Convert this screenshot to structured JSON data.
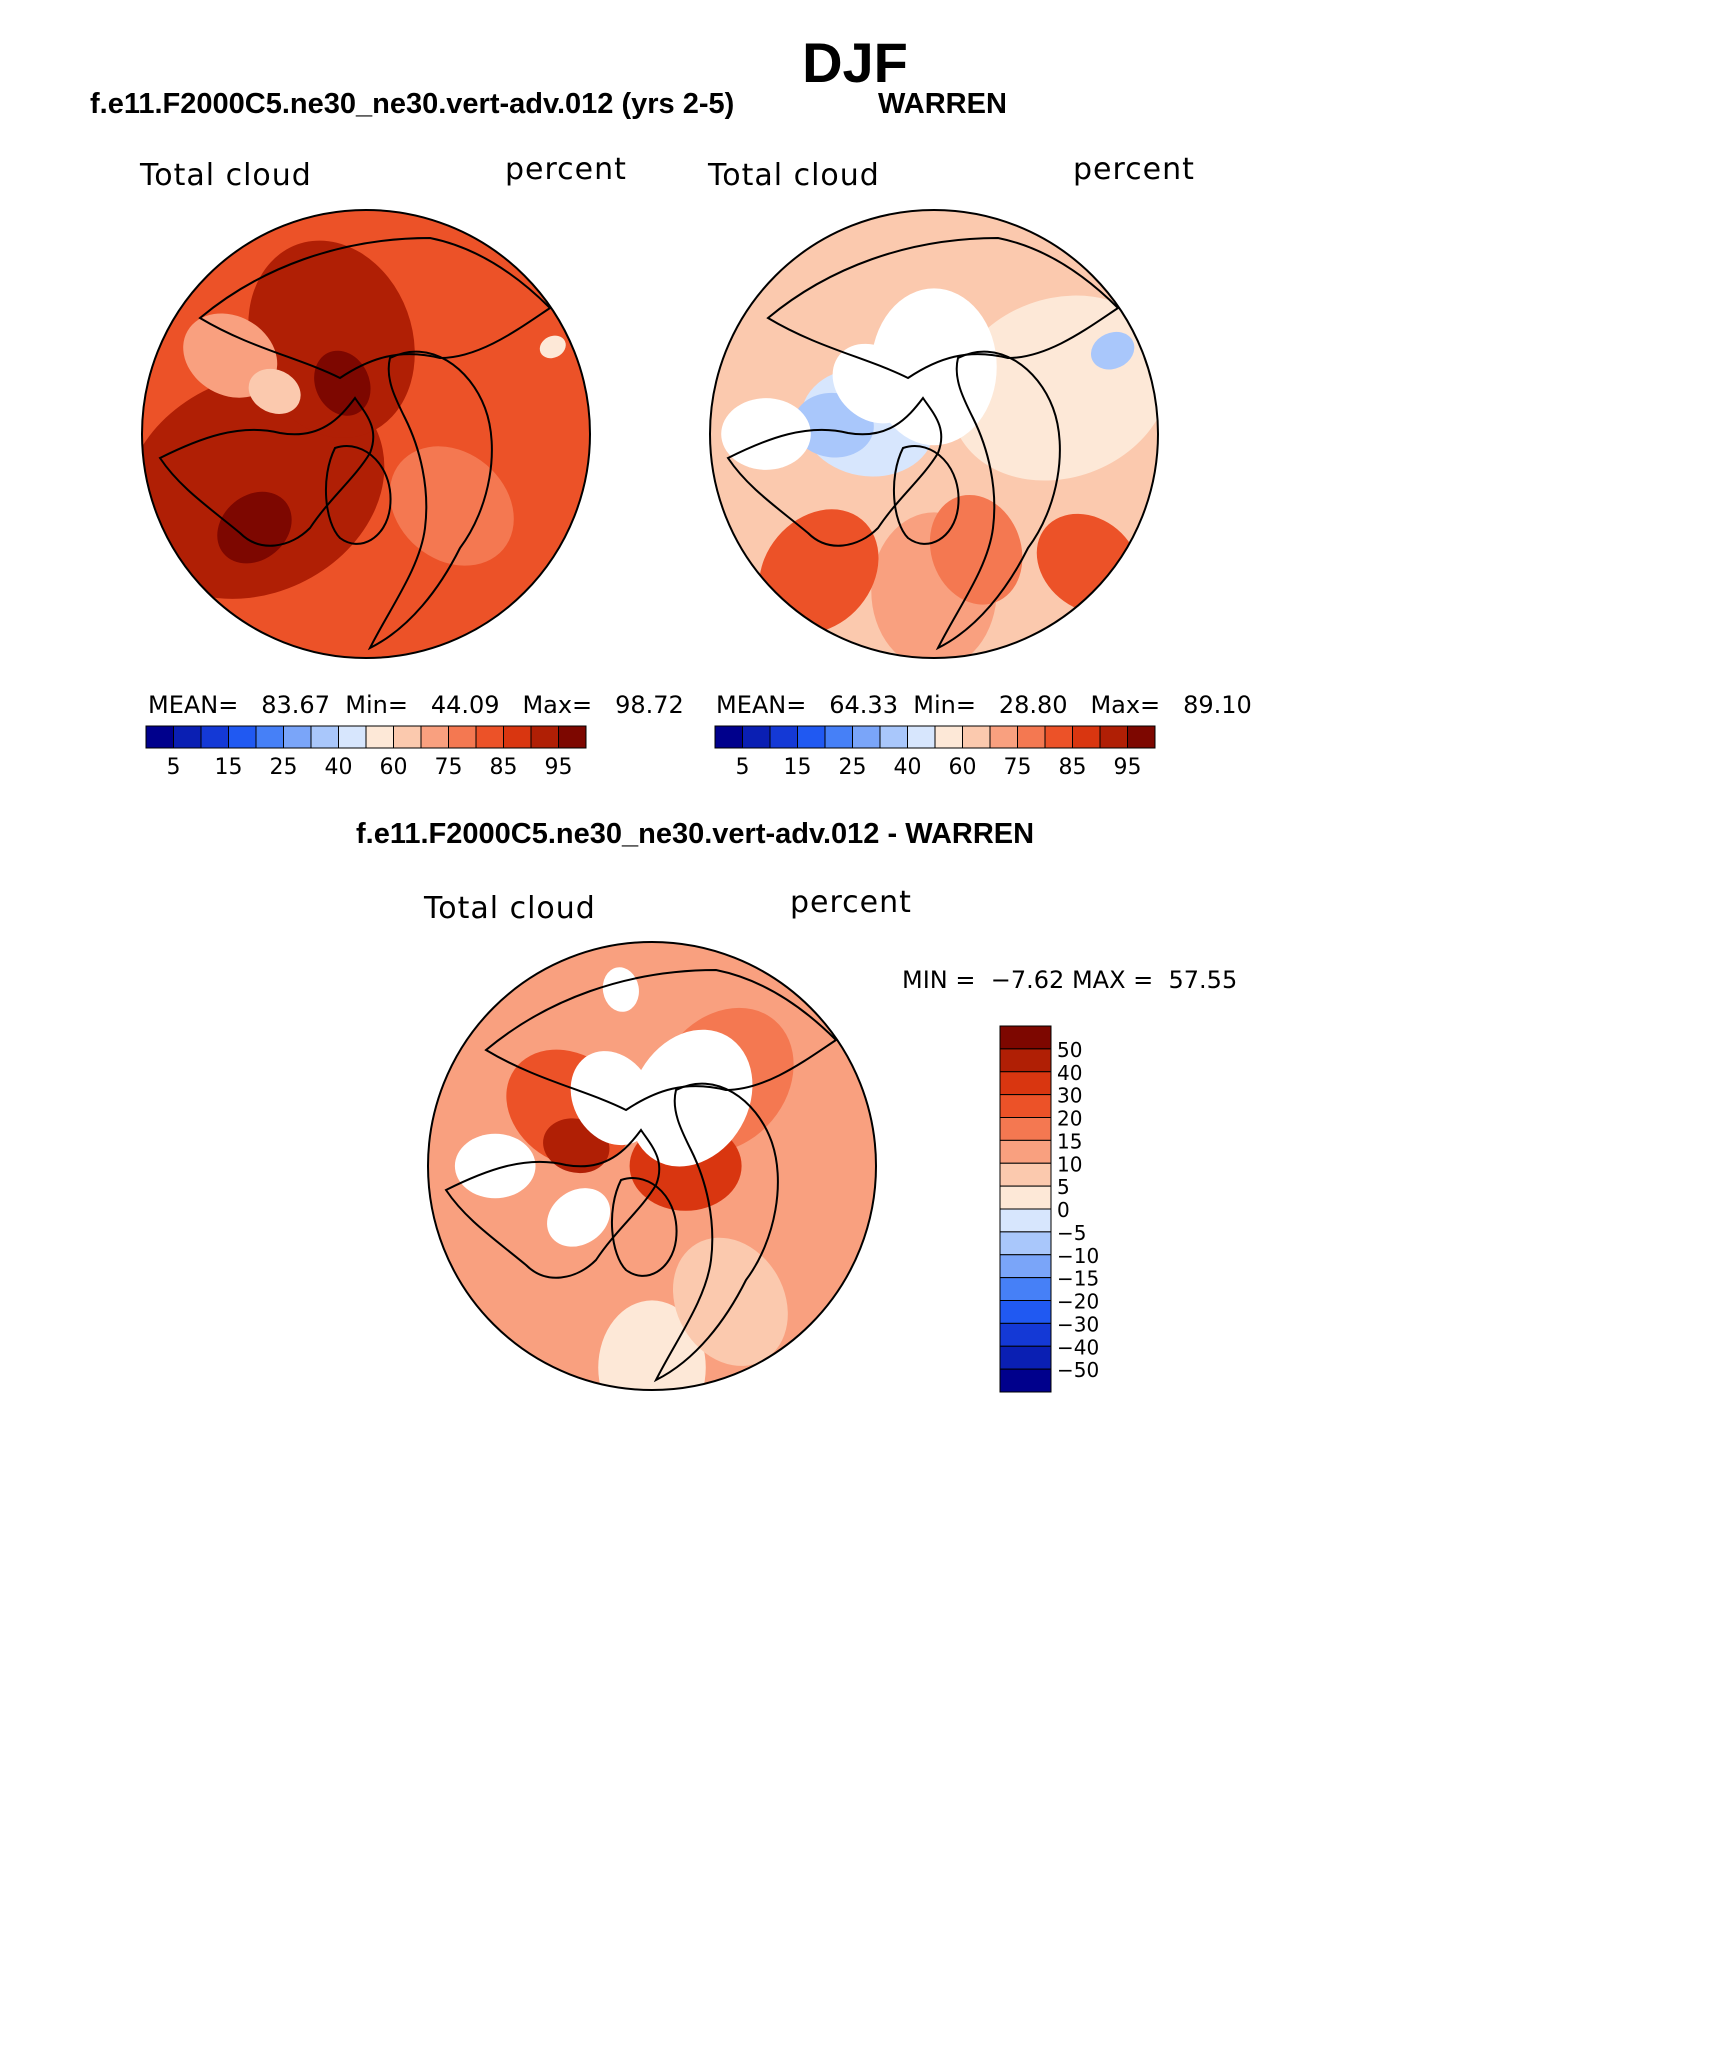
{
  "title": "DJF",
  "panels": [
    {
      "case_title": "f.e11.F2000C5.ne30_ne30.vert-adv.012 (yrs 2-5)",
      "variable": "Total cloud",
      "units": "percent",
      "stats": {
        "mean_label": "MEAN=",
        "mean": "83.67",
        "min_label": "Min=",
        "min": "44.09",
        "max_label": "Max=",
        "max": "98.72"
      }
    },
    {
      "case_title": "WARREN",
      "variable": "Total cloud",
      "units": "percent",
      "stats": {
        "mean_label": "MEAN=",
        "mean": "64.33",
        "min_label": "Min=",
        "min": "28.80",
        "max_label": "Max=",
        "max": "89.10"
      }
    },
    {
      "case_title": "f.e11.F2000C5.ne30_ne30.vert-adv.012 - WARREN",
      "variable": "Total cloud",
      "units": "percent",
      "stats": {
        "min_label": "MIN =",
        "min": "−7.62",
        "max_label": "MAX =",
        "max": "57.55"
      }
    }
  ],
  "colorbar_abs": {
    "colors": [
      "#00008c",
      "#0a1fb3",
      "#1439d6",
      "#2059f2",
      "#4680f7",
      "#7aa5f9",
      "#a9c7fb",
      "#d7e6fd",
      "#fde8d7",
      "#fbc9ae",
      "#f9a07f",
      "#f47851",
      "#ec5228",
      "#d93610",
      "#b01f05",
      "#7d0700"
    ],
    "tick_labels": [
      "5",
      "15",
      "25",
      "40",
      "60",
      "75",
      "85",
      "95"
    ]
  },
  "colorbar_diff": {
    "colors": [
      "#7d0700",
      "#b01f05",
      "#d93610",
      "#ec5228",
      "#f47851",
      "#f9a07f",
      "#fbc9ae",
      "#fde8d7",
      "#d7e6fd",
      "#a9c7fb",
      "#7aa5f9",
      "#4680f7",
      "#2059f2",
      "#1439d6",
      "#0a1fb3",
      "#00008c"
    ],
    "tick_labels": [
      "50",
      "40",
      "30",
      "20",
      "15",
      "10",
      "5",
      "0",
      "−5",
      "−10",
      "−15",
      "−20",
      "−30",
      "−40",
      "−50"
    ]
  },
  "maps": [
    {
      "fill": "#ec5228",
      "patches": [
        {
          "c": "#b01f05",
          "a": 205,
          "r": 0.55,
          "s": 0.6
        },
        {
          "c": "#b01f05",
          "a": 110,
          "r": 0.45,
          "s": 0.45
        },
        {
          "c": "#7d0700",
          "a": 220,
          "r": 0.65,
          "s": 0.18
        },
        {
          "c": "#7d0700",
          "a": 115,
          "r": 0.25,
          "s": 0.15
        },
        {
          "c": "#f47851",
          "a": 320,
          "r": 0.5,
          "s": 0.3
        },
        {
          "c": "#f9a07f",
          "a": 150,
          "r": 0.7,
          "s": 0.22
        },
        {
          "c": "#fbc9ae",
          "a": 155,
          "r": 0.45,
          "s": 0.12
        },
        {
          "c": "#fde8d7",
          "a": 25,
          "r": 0.92,
          "s": 0.06
        }
      ]
    },
    {
      "fill": "#fbc9ae",
      "patches": [
        {
          "c": "#fde8d7",
          "a": 20,
          "r": 0.6,
          "s": 0.5
        },
        {
          "c": "#f9a07f",
          "a": 270,
          "r": 0.7,
          "s": 0.35
        },
        {
          "c": "#ec5228",
          "a": 230,
          "r": 0.8,
          "s": 0.3
        },
        {
          "c": "#ec5228",
          "a": 320,
          "r": 0.9,
          "s": 0.25
        },
        {
          "c": "#f47851",
          "a": 290,
          "r": 0.55,
          "s": 0.25
        },
        {
          "c": "#d7e6fd",
          "a": 170,
          "r": 0.3,
          "s": 0.3
        },
        {
          "c": "#a9c7fb",
          "a": 175,
          "r": 0.45,
          "s": 0.18
        },
        {
          "c": "#a9c7fb",
          "a": 25,
          "r": 0.88,
          "s": 0.1
        },
        {
          "c": "#ffffff",
          "a": 90,
          "r": 0.3,
          "s": 0.35
        },
        {
          "c": "#ffffff",
          "a": 180,
          "r": 0.75,
          "s": 0.2
        },
        {
          "c": "#ffffff",
          "a": 140,
          "r": 0.35,
          "s": 0.2
        }
      ]
    },
    {
      "fill": "#f9a07f",
      "patches": [
        {
          "c": "#fde8d7",
          "a": 270,
          "r": 0.9,
          "s": 0.3
        },
        {
          "c": "#fbc9ae",
          "a": 300,
          "r": 0.7,
          "s": 0.3
        },
        {
          "c": "#f47851",
          "a": 50,
          "r": 0.5,
          "s": 0.35
        },
        {
          "c": "#ec5228",
          "a": 145,
          "r": 0.45,
          "s": 0.3
        },
        {
          "c": "#d93610",
          "a": 0,
          "r": 0.15,
          "s": 0.25
        },
        {
          "c": "#b01f05",
          "a": 165,
          "r": 0.35,
          "s": 0.15
        },
        {
          "c": "#ffffff",
          "a": 60,
          "r": 0.35,
          "s": 0.32
        },
        {
          "c": "#ffffff",
          "a": 120,
          "r": 0.35,
          "s": 0.22
        },
        {
          "c": "#ffffff",
          "a": 180,
          "r": 0.7,
          "s": 0.18
        },
        {
          "c": "#ffffff",
          "a": 215,
          "r": 0.4,
          "s": 0.15
        },
        {
          "c": "#ffffff",
          "a": 100,
          "r": 0.8,
          "s": 0.1
        }
      ]
    }
  ]
}
